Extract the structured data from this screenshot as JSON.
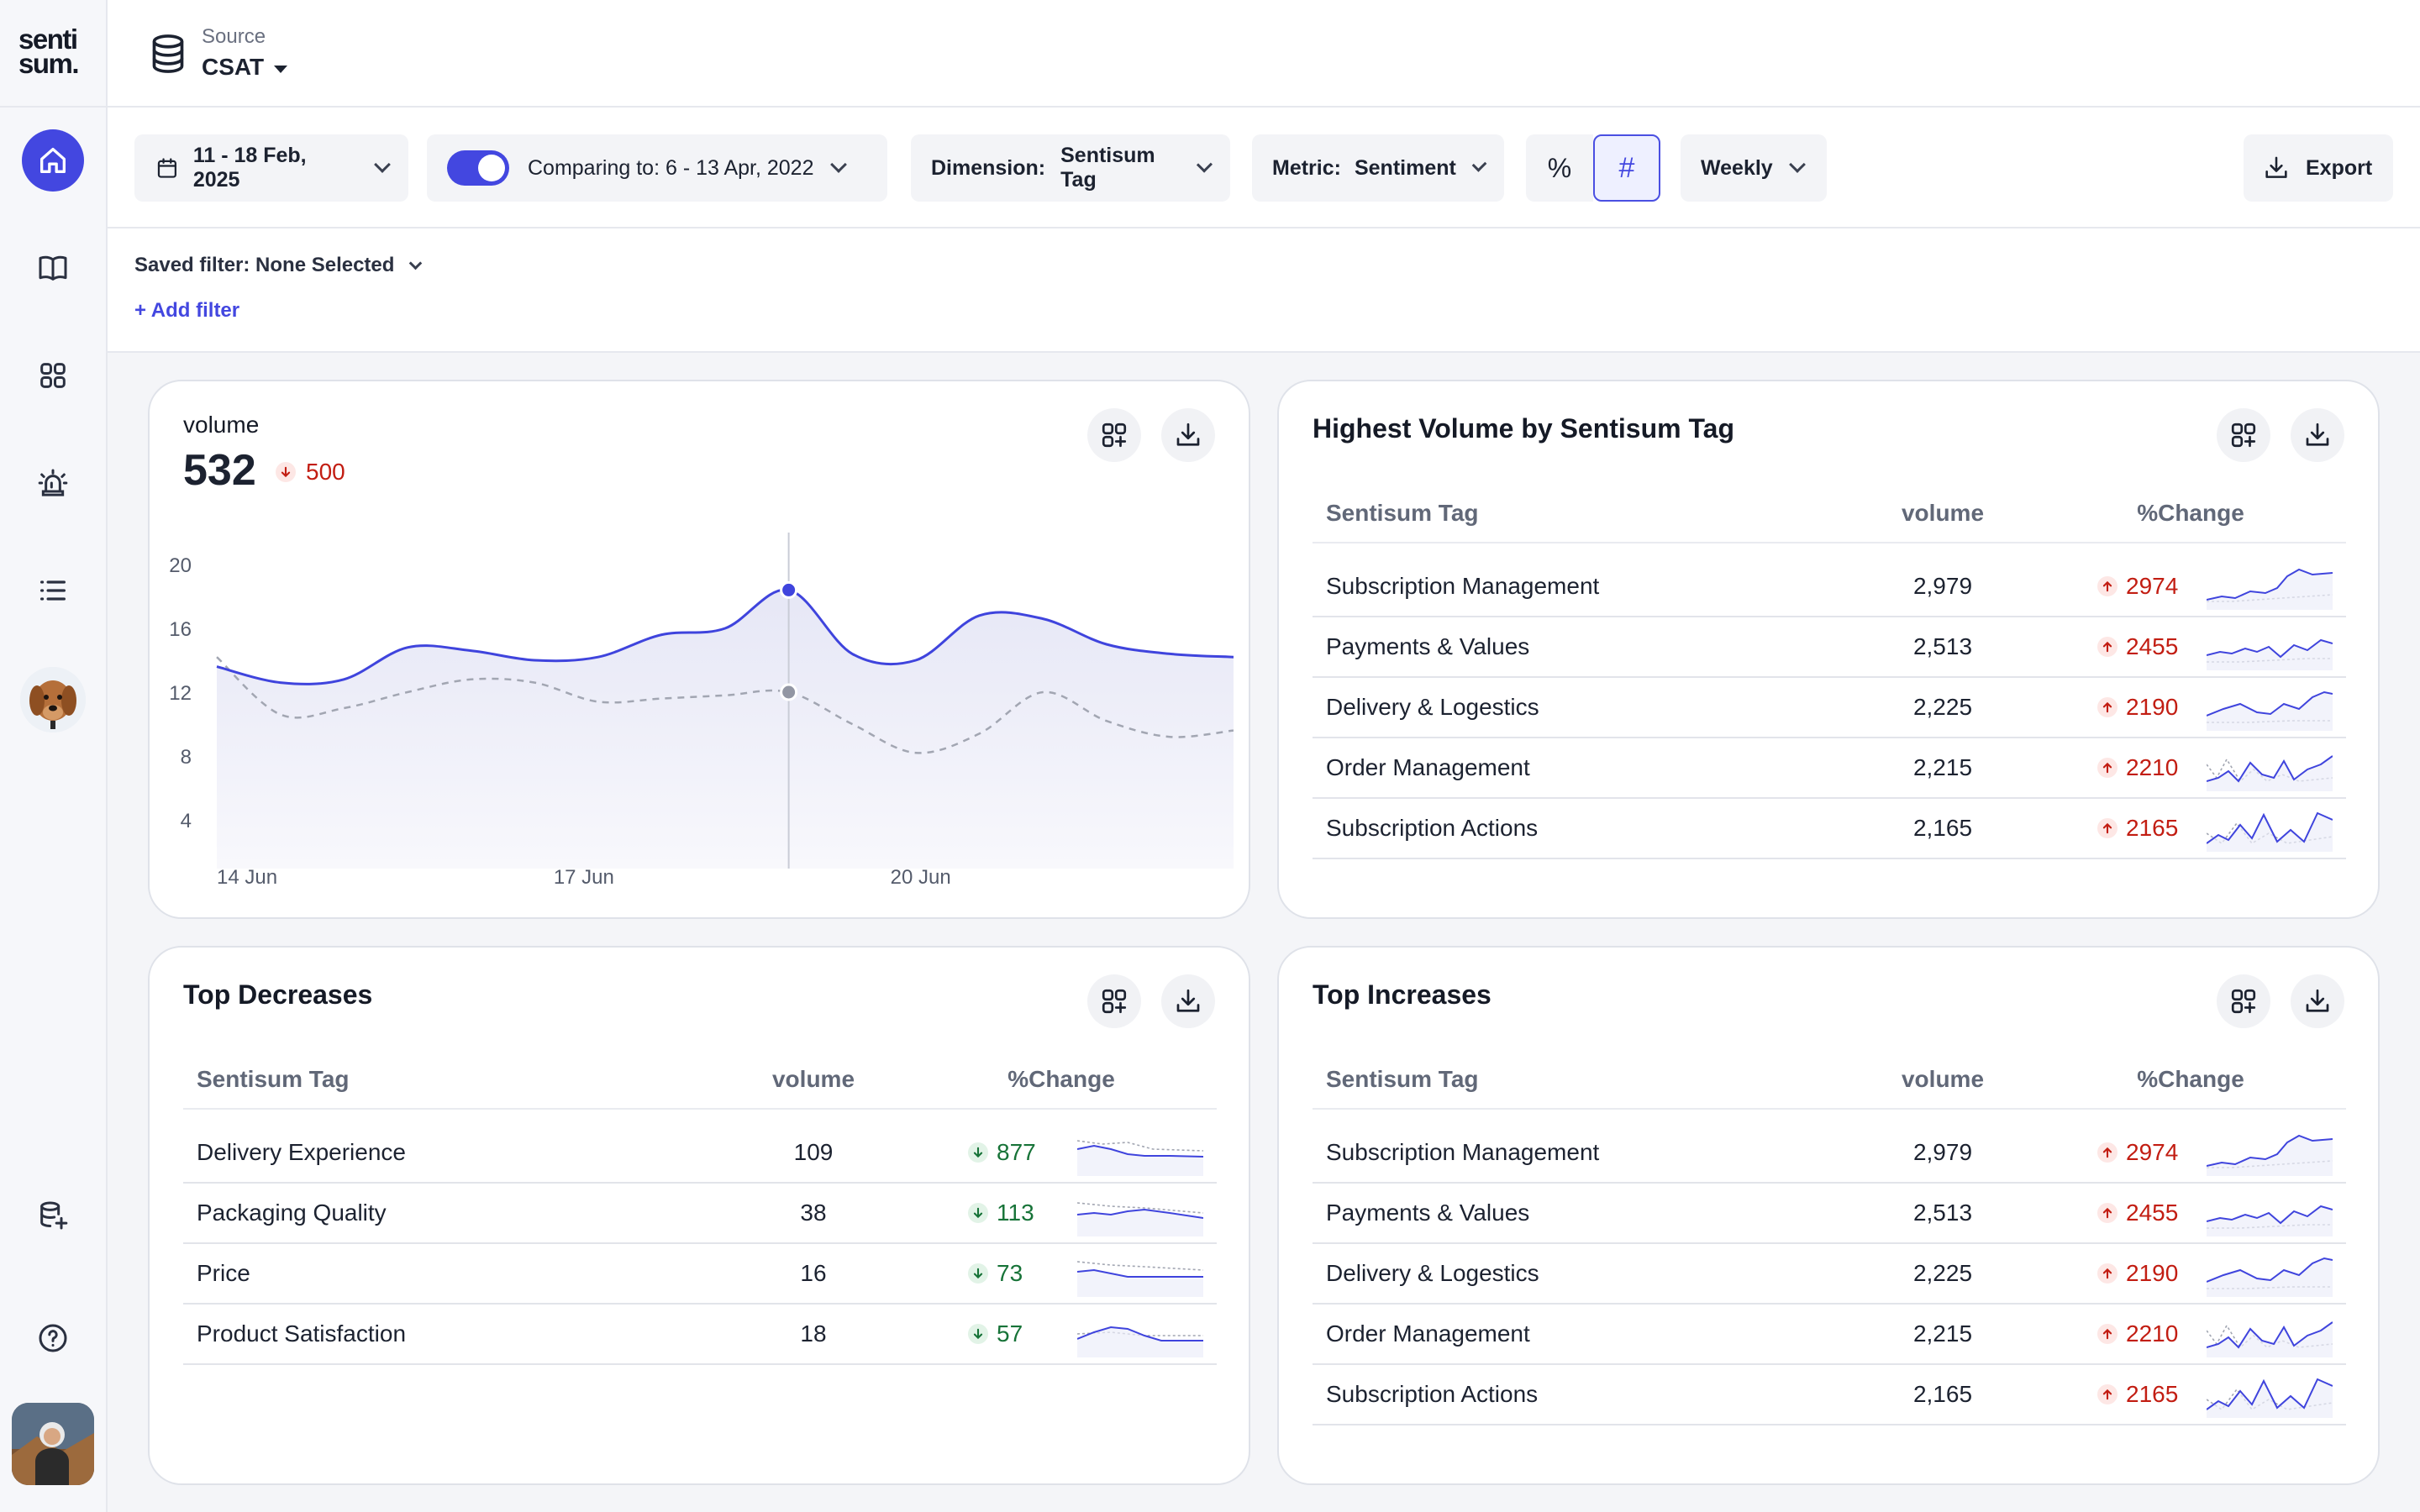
{
  "brand": {
    "logo_line1": "senti",
    "logo_line2": "sum."
  },
  "source": {
    "label": "Source",
    "value": "CSAT"
  },
  "toolbar": {
    "date_range": "11 - 18 Feb, 2025",
    "comparing": "Comparing to: 6 - 13 Apr, 2022",
    "dimension_label": "Dimension:",
    "dimension_value": "Sentisum Tag",
    "metric_label": "Metric:",
    "metric_value": "Sentiment",
    "percent_symbol": "%",
    "hash_symbol": "#",
    "interval": "Weekly",
    "export": "Export"
  },
  "filters": {
    "saved": "Saved filter: None Selected",
    "add": "+ Add filter"
  },
  "volume_card": {
    "title": "volume",
    "value": "532",
    "delta": "500",
    "chart_data": {
      "type": "line",
      "title": "",
      "xlabel": "",
      "ylabel": "",
      "ylim": [
        2,
        22
      ],
      "yticks": [
        "20",
        "16",
        "12",
        "8",
        "4"
      ],
      "xticks": [
        "14 Jun",
        "17 Jun",
        "20 Jun"
      ],
      "series": [
        {
          "color": "#3f44dd",
          "values": [
            13.6,
            12.6,
            12.8,
            14.8,
            14.6,
            14.0,
            14.2,
            15.6,
            16.0,
            18.4,
            14.4,
            14.0,
            16.8,
            16.6,
            15.0,
            14.4,
            14.2
          ]
        },
        {
          "color": "#a2a6b2",
          "values": [
            14.2,
            10.6,
            11.0,
            12.0,
            12.8,
            12.6,
            11.4,
            11.6,
            11.8,
            12.0,
            10.0,
            8.2,
            9.4,
            12.0,
            10.2,
            9.2,
            9.6
          ]
        }
      ],
      "highlight_index": 9
    }
  },
  "highest_volume": {
    "title": "Highest Volume by Sentisum Tag",
    "headers": [
      "Sentisum Tag",
      "volume",
      "%Change"
    ],
    "rows": [
      {
        "tag": "Subscription Management",
        "volume": "2,979",
        "change": "2974"
      },
      {
        "tag": "Payments & Values",
        "volume": "2,513",
        "change": "2455"
      },
      {
        "tag": "Delivery & Logestics",
        "volume": "2,225",
        "change": "2190"
      },
      {
        "tag": "Order Management",
        "volume": "2,215",
        "change": "2210"
      },
      {
        "tag": "Subscription Actions",
        "volume": "2,165",
        "change": "2165"
      }
    ]
  },
  "top_decreases": {
    "title": "Top Decreases",
    "headers": [
      "Sentisum Tag",
      "volume",
      "%Change"
    ],
    "rows": [
      {
        "tag": "Delivery Experience",
        "volume": "109",
        "change": "877"
      },
      {
        "tag": "Packaging Quality",
        "volume": "38",
        "change": "113"
      },
      {
        "tag": "Price",
        "volume": "16",
        "change": "73"
      },
      {
        "tag": "Product Satisfaction",
        "volume": "18",
        "change": "57"
      }
    ]
  },
  "top_increases": {
    "title": "Top Increases",
    "headers": [
      "Sentisum Tag",
      "volume",
      "%Change"
    ],
    "rows": [
      {
        "tag": "Subscription Management",
        "volume": "2,979",
        "change": "2974"
      },
      {
        "tag": "Payments & Values",
        "volume": "2,513",
        "change": "2455"
      },
      {
        "tag": "Delivery & Logestics",
        "volume": "2,225",
        "change": "2190"
      },
      {
        "tag": "Order Management",
        "volume": "2,215",
        "change": "2210"
      },
      {
        "tag": "Subscription Actions",
        "volume": "2,165",
        "change": "2165"
      }
    ]
  },
  "colors": {
    "accent": "#4347e0",
    "up": "#c21d12",
    "down": "#177338"
  }
}
